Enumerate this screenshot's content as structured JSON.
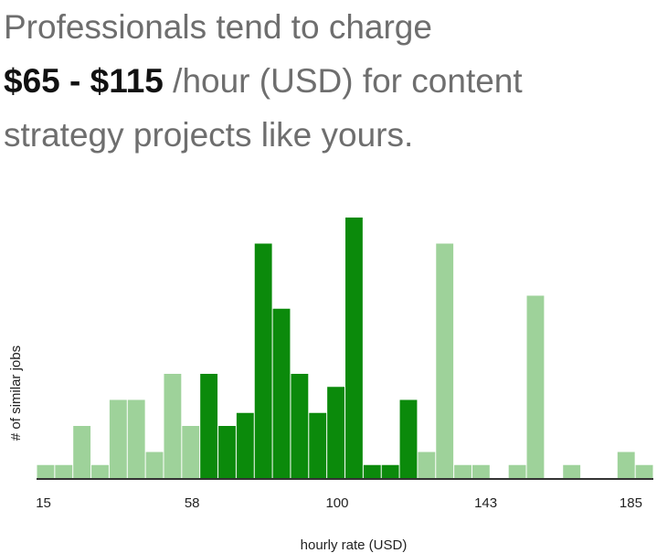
{
  "headline": {
    "line1": "Professionals tend to charge",
    "range": "$65 - $115",
    "rest1": "/hour (USD) for content",
    "rest2": "strategy projects like yours."
  },
  "chart_data": {
    "type": "histogram",
    "bins": [
      13,
      18.25,
      23.5,
      28.75,
      34,
      39.25,
      44.5,
      49.75,
      55,
      60.25,
      65.5,
      70.75,
      76,
      81.25,
      86.5,
      91.75,
      97,
      102.25,
      107.5,
      112.75,
      118,
      123.25,
      128.5,
      133.75,
      139,
      144.25,
      149.5,
      154.75,
      160,
      165.25,
      170.5,
      175.75,
      181,
      186.25,
      191.5
    ],
    "values": [
      0.5,
      0.5,
      2,
      0.5,
      3,
      3,
      1,
      4,
      2,
      4,
      2,
      2.5,
      9,
      6.5,
      4,
      2.5,
      3.5,
      10,
      0.5,
      0.5,
      3,
      1,
      9,
      0.5,
      0.5,
      0,
      0.5,
      7,
      0,
      0.5,
      0,
      0,
      1,
      0.5
    ],
    "colors": [
      "#9ed29a",
      "#9ed29a",
      "#9ed29a",
      "#9ed29a",
      "#9ed29a",
      "#9ed29a",
      "#9ed29a",
      "#9ed29a",
      "#9ed29a",
      "#0b8a0b",
      "#0b8a0b",
      "#0b8a0b",
      "#0b8a0b",
      "#0b8a0b",
      "#0b8a0b",
      "#0b8a0b",
      "#0b8a0b",
      "#0b8a0b",
      "#0b8a0b",
      "#0b8a0b",
      "#0b8a0b",
      "#9ed29a",
      "#9ed29a",
      "#9ed29a",
      "#9ed29a",
      "#9ed29a",
      "#9ed29a",
      "#9ed29a",
      "#9ed29a",
      "#9ed29a",
      "#9ed29a",
      "#9ed29a",
      "#9ed29a",
      "#9ed29a"
    ],
    "xlim": [
      13,
      191.5
    ],
    "ylim": [
      0,
      10
    ],
    "xticks": [
      15,
      58,
      100,
      143,
      185
    ],
    "xlabel": "hourly rate (USD)",
    "ylabel": "# of similar jobs"
  }
}
